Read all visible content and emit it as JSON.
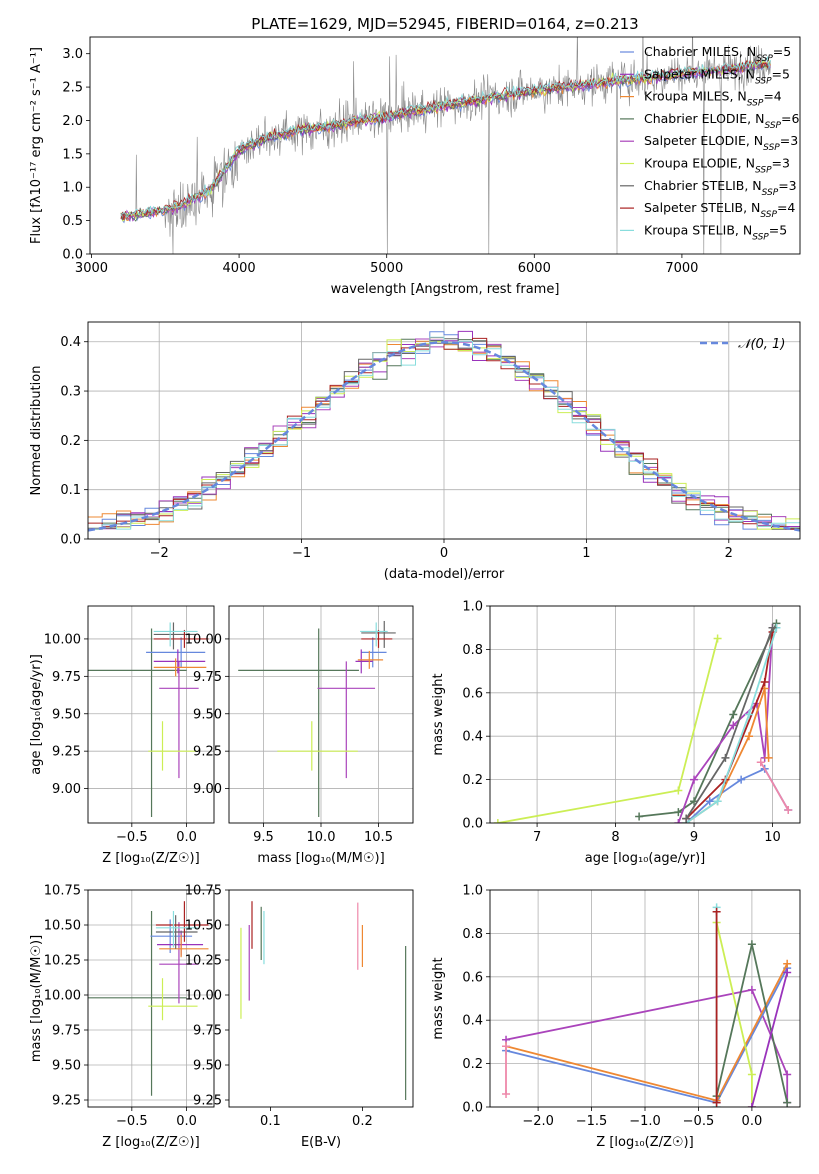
{
  "colors": {
    "chabrier_miles": "#6688dd",
    "salpeter_miles": "#9933bb",
    "kroupa_miles": "#ee8833",
    "chabrier_elodie": "#55775a",
    "salpeter_elodie": "#aa44bb",
    "kroupa_elodie": "#ccee55",
    "chabrier_stelib": "#666666",
    "salpeter_stelib": "#aa2222",
    "kroupa_stelib": "#88dddd",
    "data_grey": "#888888",
    "pink": "#ee88aa",
    "normal_curve": "#6688dd"
  },
  "chart_data": [
    {
      "id": "spectrum",
      "type": "line",
      "title": "PLATE=1629, MJD=52945, FIBERID=0164, z=0.213",
      "xlabel": "wavelength [Angstrom, rest frame]",
      "ylabel": "Flux [fλ10⁻¹⁷ erg cm⁻² s⁻¹ A⁻¹]",
      "xlim": [
        2990,
        7800
      ],
      "ylim": [
        0,
        3.25
      ],
      "xticks": [
        "3000",
        "4000",
        "5000",
        "6000",
        "7000"
      ],
      "yticks": [
        "0.0",
        "0.5",
        "1.0",
        "1.5",
        "2.0",
        "2.5",
        "3.0"
      ],
      "legend_position": "right",
      "legend": [
        "Chabrier MILES, N_SSP=5",
        "Salpeter MILES, N_SSP=5",
        "Kroupa MILES, N_SSP=4",
        "Chabrier ELODIE, N_SSP=6",
        "Salpeter ELODIE, N_SSP=3",
        "Kroupa ELODIE, N_SSP=3",
        "Chabrier STELIB, N_SSP=3",
        "Salpeter STELIB, N_SSP=4",
        "Kroupa STELIB, N_SSP=5"
      ],
      "model_curve": {
        "x": [
          3200,
          3400,
          3600,
          3800,
          4000,
          4200,
          4400,
          4600,
          4800,
          5000,
          5200,
          5400,
          5600,
          5800,
          6000,
          6200,
          6400,
          6600,
          6800,
          7000,
          7200,
          7400,
          7600
        ],
        "y": [
          0.55,
          0.62,
          0.72,
          0.95,
          1.55,
          1.75,
          1.85,
          1.9,
          2.0,
          2.05,
          2.15,
          2.22,
          2.3,
          2.38,
          2.45,
          2.5,
          2.55,
          2.6,
          2.65,
          2.7,
          2.75,
          2.8,
          2.85
        ]
      },
      "data_range": {
        "x_start": 3200,
        "x_end": 7600
      }
    },
    {
      "id": "residuals",
      "type": "histogram",
      "xlabel": "(data-model)/error",
      "ylabel": "Normed distribution",
      "xlim": [
        -2.5,
        2.5
      ],
      "ylim": [
        0,
        0.44
      ],
      "xticks": [
        "−2",
        "−1",
        "0",
        "1",
        "2"
      ],
      "yticks": [
        "0.0",
        "0.1",
        "0.2",
        "0.3",
        "0.4"
      ],
      "grid": true,
      "legend_position": "top-right",
      "legend": [
        "𝒩(0, 1)"
      ],
      "bins": {
        "start": -2.5,
        "width": 0.1,
        "count": 50
      }
    },
    {
      "id": "age_vs_Z",
      "type": "errorbar",
      "xlabel": "Z [log₁₀(Z/Z☉)]",
      "ylabel": "age  [log₁₀(age/yr)]",
      "xlim": [
        -0.9,
        0.25
      ],
      "ylim": [
        8.77,
        10.22
      ],
      "xticks": [
        "−0.5",
        "0.0"
      ],
      "yticks": [
        "9.00",
        "9.25",
        "9.50",
        "9.75",
        "10.00"
      ],
      "grid": true,
      "points": [
        {
          "c": "chabrier_elodie",
          "x": -0.32,
          "y": 9.79,
          "xl": 0.58,
          "xh": 0.32,
          "yl": 0.98,
          "yh": 0.28
        },
        {
          "c": "salpeter_elodie",
          "x": -0.07,
          "y": 9.67,
          "xl": 0.18,
          "xh": 0.18,
          "yl": 0.6,
          "yh": 0.18
        },
        {
          "c": "kroupa_elodie",
          "x": -0.22,
          "y": 9.25,
          "xl": 0.13,
          "xh": 0.32,
          "yl": 0.13,
          "yh": 0.2
        },
        {
          "c": "chabrier_miles",
          "x": -0.05,
          "y": 9.91,
          "xl": 0.32,
          "xh": 0.22,
          "yl": 0.1,
          "yh": 0.1
        },
        {
          "c": "salpeter_miles",
          "x": -0.08,
          "y": 9.85,
          "xl": 0.22,
          "xh": 0.25,
          "yl": 0.08,
          "yh": 0.08
        },
        {
          "c": "kroupa_miles",
          "x": -0.1,
          "y": 9.81,
          "xl": 0.2,
          "xh": 0.28,
          "yl": 0.06,
          "yh": 0.06
        },
        {
          "c": "chabrier_stelib",
          "x": -0.12,
          "y": 10.03,
          "xl": 0.18,
          "xh": 0.2,
          "yl": 0.1,
          "yh": 0.08
        },
        {
          "c": "salpeter_stelib",
          "x": -0.02,
          "y": 10.0,
          "xl": 0.28,
          "xh": 0.22,
          "yl": 0.06,
          "yh": 0.06
        },
        {
          "c": "kroupa_stelib",
          "x": -0.15,
          "y": 10.05,
          "xl": 0.15,
          "xh": 0.25,
          "yl": 0.1,
          "yh": 0.06
        }
      ]
    },
    {
      "id": "age_vs_mass",
      "type": "errorbar",
      "xlabel": "mass [log₁₀(M/M☉)]",
      "xlim": [
        9.2,
        10.8
      ],
      "ylim": [
        8.77,
        10.22
      ],
      "xticks": [
        "9.5",
        "10.0",
        "10.5"
      ],
      "yticks": [
        "9.00",
        "9.25",
        "9.50",
        "9.75",
        "10.00"
      ],
      "grid": true,
      "points": [
        {
          "c": "chabrier_elodie",
          "x": 9.98,
          "y": 9.79,
          "xl": 0.7,
          "xh": 0.35,
          "yl": 0.98,
          "yh": 0.28
        },
        {
          "c": "salpeter_elodie",
          "x": 10.22,
          "y": 9.67,
          "xl": 0.25,
          "xh": 0.25,
          "yl": 0.6,
          "yh": 0.18
        },
        {
          "c": "kroupa_elodie",
          "x": 9.92,
          "y": 9.25,
          "xl": 0.3,
          "xh": 0.4,
          "yl": 0.13,
          "yh": 0.2
        },
        {
          "c": "chabrier_miles",
          "x": 10.45,
          "y": 9.91,
          "xl": 0.1,
          "xh": 0.12,
          "yl": 0.1,
          "yh": 0.1
        },
        {
          "c": "salpeter_miles",
          "x": 10.35,
          "y": 9.85,
          "xl": 0.05,
          "xh": 0.1,
          "yl": 0.08,
          "yh": 0.08
        },
        {
          "c": "kroupa_miles",
          "x": 10.42,
          "y": 9.86,
          "xl": 0.1,
          "xh": 0.12,
          "yl": 0.06,
          "yh": 0.06
        },
        {
          "c": "chabrier_stelib",
          "x": 10.55,
          "y": 10.04,
          "xl": 0.2,
          "xh": 0.1,
          "yl": 0.1,
          "yh": 0.08
        },
        {
          "c": "salpeter_stelib",
          "x": 10.5,
          "y": 10.0,
          "xl": 0.15,
          "xh": 0.12,
          "yl": 0.06,
          "yh": 0.06
        },
        {
          "c": "kroupa_stelib",
          "x": 10.48,
          "y": 10.05,
          "xl": 0.14,
          "xh": 0.1,
          "yl": 0.1,
          "yh": 0.06
        }
      ]
    },
    {
      "id": "mass_weight_vs_age",
      "type": "line",
      "xlabel": "age  [log₁₀(age/yr)]",
      "ylabel": "mass weight",
      "xlim": [
        6.4,
        10.35
      ],
      "ylim": [
        0,
        1.0
      ],
      "xticks": [
        "7",
        "8",
        "9",
        "10"
      ],
      "yticks": [
        "0.0",
        "0.2",
        "0.4",
        "0.6",
        "0.8",
        "1.0"
      ],
      "grid": true,
      "series": [
        {
          "c": "kroupa_elodie",
          "x": [
            6.5,
            8.8,
            9.3
          ],
          "y": [
            0.0,
            0.15,
            0.85
          ]
        },
        {
          "c": "chabrier_elodie",
          "x": [
            8.3,
            8.8,
            9.0,
            9.5,
            10.05
          ],
          "y": [
            0.03,
            0.05,
            0.1,
            0.5,
            0.92
          ]
        },
        {
          "c": "salpeter_elodie",
          "x": [
            8.8,
            9.0,
            9.5,
            9.8,
            9.9,
            10.0
          ],
          "y": [
            0.0,
            0.2,
            0.45,
            0.55,
            0.3,
            0.9
          ]
        },
        {
          "c": "chabrier_miles",
          "x": [
            8.9,
            9.2,
            9.6,
            9.9,
            10.2
          ],
          "y": [
            0.0,
            0.1,
            0.2,
            0.25,
            0.06
          ]
        },
        {
          "c": "kroupa_miles",
          "x": [
            8.9,
            9.3,
            9.7,
            9.9,
            9.95
          ],
          "y": [
            0.0,
            0.1,
            0.4,
            0.62,
            0.3
          ]
        },
        {
          "c": "salpeter_stelib",
          "x": [
            8.9,
            9.4,
            9.9,
            10.0
          ],
          "y": [
            0.02,
            0.2,
            0.65,
            0.88
          ]
        },
        {
          "c": "kroupa_stelib",
          "x": [
            8.9,
            9.3,
            9.7,
            10.05
          ],
          "y": [
            0.0,
            0.1,
            0.5,
            0.9
          ]
        },
        {
          "c": "pink",
          "x": [
            9.85,
            10.2
          ],
          "y": [
            0.28,
            0.06
          ]
        },
        {
          "c": "chabrier_stelib",
          "x": [
            8.9,
            9.4,
            10.0
          ],
          "y": [
            0.02,
            0.3,
            0.9
          ]
        }
      ]
    },
    {
      "id": "mass_vs_Z",
      "type": "errorbar",
      "xlabel": "Z [log₁₀(Z/Z☉)]",
      "ylabel": "mass [log₁₀(M/M☉)]",
      "xlim": [
        -0.9,
        0.25
      ],
      "ylim": [
        9.2,
        10.75
      ],
      "xticks": [
        "−0.5",
        "0.0"
      ],
      "yticks": [
        "9.25",
        "9.50",
        "9.75",
        "10.00",
        "10.25",
        "10.50",
        "10.75"
      ],
      "grid": true,
      "points": [
        {
          "c": "chabrier_elodie",
          "x": -0.32,
          "y": 9.98,
          "xl": 0.58,
          "xh": 0.32,
          "yl": 0.7,
          "yh": 0.62
        },
        {
          "c": "salpeter_elodie",
          "x": -0.07,
          "y": 10.22,
          "xl": 0.18,
          "xh": 0.18,
          "yl": 0.28,
          "yh": 0.3
        },
        {
          "c": "kroupa_elodie",
          "x": -0.22,
          "y": 9.92,
          "xl": 0.13,
          "xh": 0.32,
          "yl": 0.1,
          "yh": 0.2
        },
        {
          "c": "chabrier_miles",
          "x": -0.15,
          "y": 10.42,
          "xl": 0.18,
          "xh": 0.2,
          "yl": 0.12,
          "yh": 0.12
        },
        {
          "c": "salpeter_miles",
          "x": -0.05,
          "y": 10.36,
          "xl": 0.22,
          "xh": 0.2,
          "yl": 0.08,
          "yh": 0.1
        },
        {
          "c": "kroupa_miles",
          "x": -0.05,
          "y": 10.33,
          "xl": 0.2,
          "xh": 0.25,
          "yl": 0.06,
          "yh": 0.1
        },
        {
          "c": "chabrier_stelib",
          "x": -0.1,
          "y": 10.45,
          "xl": 0.18,
          "xh": 0.2,
          "yl": 0.12,
          "yh": 0.12
        },
        {
          "c": "salpeter_stelib",
          "x": -0.02,
          "y": 10.5,
          "xl": 0.26,
          "xh": 0.22,
          "yl": 0.12,
          "yh": 0.17
        },
        {
          "c": "kroupa_stelib",
          "x": -0.12,
          "y": 10.48,
          "xl": 0.16,
          "xh": 0.22,
          "yl": 0.14,
          "yh": 0.12
        }
      ]
    },
    {
      "id": "mass_vs_ebv",
      "type": "errorbar",
      "xlabel": "E(B-V)",
      "xlim": [
        0.055,
        0.255
      ],
      "ylim": [
        9.2,
        10.75
      ],
      "xticks": [
        "0.1",
        "0.2"
      ],
      "yticks": [
        "9.25",
        "9.50",
        "9.75",
        "10.00",
        "10.25",
        "10.50",
        "10.75"
      ],
      "grid": false,
      "points": [
        {
          "c": "kroupa_elodie",
          "x": 0.068,
          "y": 10.15,
          "xl": 0,
          "xh": 0,
          "yl": 0.32,
          "yh": 0.33
        },
        {
          "c": "salpeter_elodie",
          "x": 0.077,
          "y": 10.2,
          "xl": 0,
          "xh": 0,
          "yl": 0.24,
          "yh": 0.3
        },
        {
          "c": "salpeter_stelib",
          "x": 0.08,
          "y": 10.5,
          "xl": 0,
          "xh": 0,
          "yl": 0.17,
          "yh": 0.17
        },
        {
          "c": "chabrier_elodie",
          "x": 0.09,
          "y": 10.45,
          "xl": 0,
          "xh": 0,
          "yl": 0.2,
          "yh": 0.18
        },
        {
          "c": "kroupa_stelib",
          "x": 0.093,
          "y": 10.42,
          "xl": 0,
          "xh": 0,
          "yl": 0.2,
          "yh": 0.18
        },
        {
          "c": "pink",
          "x": 0.195,
          "y": 10.4,
          "xl": 0,
          "xh": 0,
          "yl": 0.22,
          "yh": 0.26
        },
        {
          "c": "kroupa_miles",
          "x": 0.2,
          "y": 10.35,
          "xl": 0,
          "xh": 0,
          "yl": 0.15,
          "yh": 0.15
        },
        {
          "c": "chabrier_elodie",
          "x": 0.247,
          "y": 9.8,
          "xl": 0,
          "xh": 0,
          "yl": 0.55,
          "yh": 0.55
        }
      ]
    },
    {
      "id": "mass_weight_vs_Z",
      "type": "line",
      "xlabel": "Z [log₁₀(Z/Z☉)]",
      "ylabel": "mass weight",
      "xlim": [
        -2.45,
        0.45
      ],
      "ylim": [
        0,
        1.0
      ],
      "xticks": [
        "−2.0",
        "−1.5",
        "−1.0",
        "−0.5",
        "0.0"
      ],
      "yticks": [
        "0.0",
        "0.2",
        "0.4",
        "0.6",
        "0.8",
        "1.0"
      ],
      "grid": true,
      "series": [
        {
          "c": "salpeter_elodie",
          "x": [
            -2.3,
            0.0,
            0.33,
            0.33
          ],
          "y": [
            0.31,
            0.54,
            0.15,
            0.02
          ]
        },
        {
          "c": "chabrier_miles",
          "x": [
            -2.3,
            -0.33,
            0.33
          ],
          "y": [
            0.26,
            0.02,
            0.64
          ]
        },
        {
          "c": "kroupa_miles",
          "x": [
            -2.3,
            -0.33,
            0.33
          ],
          "y": [
            0.28,
            0.03,
            0.66
          ]
        },
        {
          "c": "kroupa_elodie",
          "x": [
            -0.33,
            0.0,
            0.0
          ],
          "y": [
            0.85,
            0.15,
            0.0
          ]
        },
        {
          "c": "chabrier_elodie",
          "x": [
            -0.33,
            0.0,
            0.33
          ],
          "y": [
            0.05,
            0.75,
            0.02
          ]
        },
        {
          "c": "pink",
          "x": [
            -2.3,
            -2.3
          ],
          "y": [
            0.06,
            0.28
          ]
        },
        {
          "c": "kroupa_stelib",
          "x": [
            -0.33,
            -0.33
          ],
          "y": [
            0.0,
            0.92
          ]
        },
        {
          "c": "salpeter_stelib",
          "x": [
            -0.33,
            -0.33
          ],
          "y": [
            0.02,
            0.9
          ]
        },
        {
          "c": "salpeter_miles",
          "x": [
            0.0,
            0.33
          ],
          "y": [
            0.0,
            0.62
          ]
        }
      ]
    }
  ]
}
